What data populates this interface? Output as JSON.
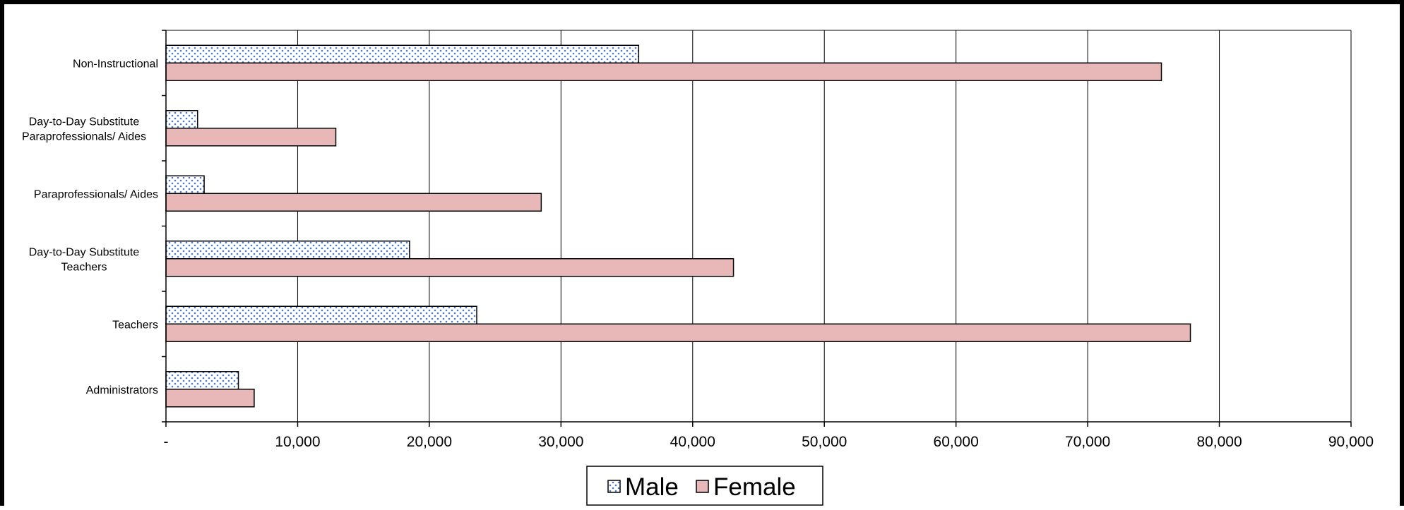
{
  "chart_data": {
    "type": "bar",
    "orientation": "horizontal",
    "categories": [
      [
        "Administrators"
      ],
      [
        "Teachers"
      ],
      [
        "Day-to-Day Substitute",
        "Teachers"
      ],
      [
        "Paraprofessionals/ Aides"
      ],
      [
        "Day-to-Day Substitute",
        "Paraprofessionals/ Aides"
      ],
      [
        "Non-Instructional"
      ]
    ],
    "series": [
      {
        "name": "Male",
        "values": [
          5500,
          23600,
          18500,
          2900,
          2400,
          35900
        ],
        "pattern": "dotted",
        "color": "#4a7bd6"
      },
      {
        "name": "Female",
        "values": [
          6700,
          77800,
          43100,
          28500,
          12900,
          75600
        ],
        "pattern": "solid",
        "color": "#e8b8b8"
      }
    ],
    "xlim": [
      0,
      90000
    ],
    "xticks": [
      0,
      10000,
      20000,
      30000,
      40000,
      50000,
      60000,
      70000,
      80000,
      90000
    ],
    "xtick_labels": [
      "-",
      "10,000",
      "20,000",
      "30,000",
      "40,000",
      "50,000",
      "60,000",
      "70,000",
      "80,000",
      "90,000"
    ],
    "grid": "vertical",
    "legend_position": "bottom-center",
    "title": "",
    "xlabel": "",
    "ylabel": ""
  }
}
